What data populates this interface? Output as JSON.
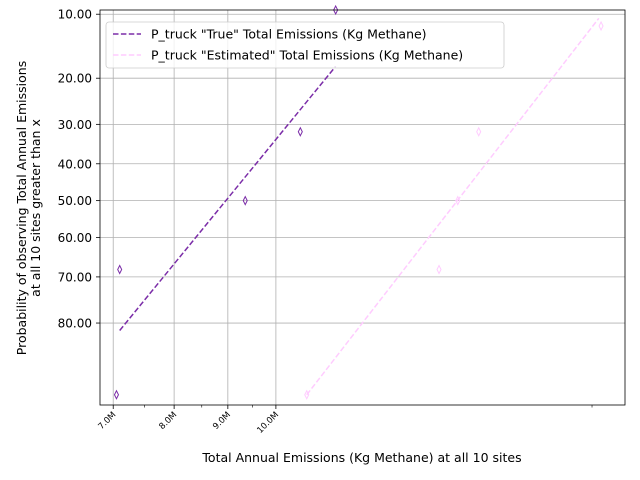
{
  "chart_data": {
    "type": "line",
    "xlabel": "Total Annual Emissions (Kg Methane) at all 10 sites",
    "ylabel_line1": "Probability of observing Total Annual Emissions",
    "ylabel_line2": "at all 10 sites greater than x",
    "x_scale": "log",
    "y_scale": "probit",
    "grid": true,
    "legend_position": "top-left",
    "x_ticks": [
      {
        "value": 7000000,
        "label": "7.0M"
      },
      {
        "value": 8000000,
        "label": "8.0M"
      },
      {
        "value": 9000000,
        "label": "9.0M"
      },
      {
        "value": 10000000,
        "label": "10.0M"
      }
    ],
    "x_ticks_unlabeled": [
      7500000,
      8500000,
      9500000,
      20000000
    ],
    "y_ticks": [
      {
        "value": 10,
        "label": "10.00"
      },
      {
        "value": 20,
        "label": "20.00"
      },
      {
        "value": 30,
        "label": "30.00"
      },
      {
        "value": 40,
        "label": "40.00"
      },
      {
        "value": 50,
        "label": "50.00"
      },
      {
        "value": 60,
        "label": "60.00"
      },
      {
        "value": 70,
        "label": "70.00"
      },
      {
        "value": 80,
        "label": "80.00"
      }
    ],
    "xlim": [
      6800000,
      21500000
    ],
    "ylim": [
      9.5,
      92
    ],
    "series": [
      {
        "name": "P_truck \"True\" Total Emissions (Kg Methane)",
        "color": "#7b2da8",
        "points": [
          {
            "x": 7050000,
            "y": 90.9
          },
          {
            "x": 7100000,
            "y": 68.2
          },
          {
            "x": 9350000,
            "y": 50.0
          },
          {
            "x": 10550000,
            "y": 31.8
          },
          {
            "x": 11400000,
            "y": 9.5
          }
        ],
        "fit": [
          {
            "x": 7100000,
            "y": 81.4
          },
          {
            "x": 11400000,
            "y": 17.8
          }
        ]
      },
      {
        "name": "P_truck \"Estimated\" Total Emissions (Kg Methane)",
        "color": "#ffccff",
        "points": [
          {
            "x": 10700000,
            "y": 90.9
          },
          {
            "x": 14300000,
            "y": 68.2
          },
          {
            "x": 14900000,
            "y": 50.0
          },
          {
            "x": 15600000,
            "y": 31.8
          },
          {
            "x": 20400000,
            "y": 11.5
          }
        ],
        "fit": [
          {
            "x": 10700000,
            "y": 90.9
          },
          {
            "x": 20300000,
            "y": 10.5
          }
        ]
      }
    ]
  }
}
